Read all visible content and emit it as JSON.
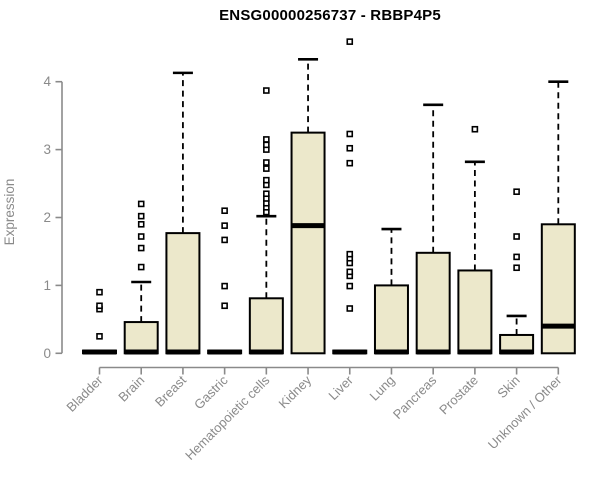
{
  "title": "ENSG00000256737 - RBBP4P5",
  "chart_data": {
    "type": "boxplot",
    "title": "ENSG00000256737 - RBBP4P5",
    "xlabel": "",
    "ylabel": "Expression",
    "ylim": [
      0,
      4.6
    ],
    "yticks": [
      0,
      1,
      2,
      3,
      4
    ],
    "grid": false,
    "legend": "none",
    "categories": [
      "Bladder",
      "Brain",
      "Breast",
      "Gastric",
      "Hematopoietic cells",
      "Kidney",
      "Liver",
      "Lung",
      "Pancreas",
      "Prostate",
      "Skin",
      "Unknown / Other"
    ],
    "series": [
      {
        "category": "Bladder",
        "q1": 0,
        "median": 0.02,
        "q3": 0.04,
        "whisker_low": 0,
        "whisker_high": 0.04,
        "outliers": [
          0.25,
          0.65,
          0.7,
          0.9
        ]
      },
      {
        "category": "Brain",
        "q1": 0,
        "median": 0.02,
        "q3": 0.46,
        "whisker_low": 0,
        "whisker_high": 1.05,
        "outliers": [
          1.27,
          1.55,
          1.72,
          1.9,
          2.02,
          2.2
        ]
      },
      {
        "category": "Breast",
        "q1": 0,
        "median": 0.02,
        "q3": 1.77,
        "whisker_low": 0,
        "whisker_high": 4.13,
        "outliers": []
      },
      {
        "category": "Gastric",
        "q1": 0,
        "median": 0.02,
        "q3": 0.04,
        "whisker_low": 0,
        "whisker_high": 0.04,
        "outliers": [
          0.7,
          0.99,
          1.67,
          1.88,
          2.1
        ]
      },
      {
        "category": "Hematopoietic cells",
        "q1": 0,
        "median": 0.02,
        "q3": 0.81,
        "whisker_low": 0,
        "whisker_high": 2.02,
        "outliers": [
          2.08,
          2.15,
          2.21,
          2.28,
          2.35,
          2.48,
          2.55,
          2.72,
          2.81,
          3.0,
          3.07,
          3.15,
          3.87
        ]
      },
      {
        "category": "Kidney",
        "q1": 0,
        "median": 1.88,
        "q3": 3.25,
        "whisker_low": 0,
        "whisker_high": 4.33,
        "outliers": []
      },
      {
        "category": "Liver",
        "q1": 0,
        "median": 0.02,
        "q3": 0.04,
        "whisker_low": 0,
        "whisker_high": 0.04,
        "outliers": [
          0.66,
          0.99,
          1.14,
          1.2,
          1.33,
          1.4,
          1.46,
          2.8,
          3.02,
          3.23,
          4.59
        ]
      },
      {
        "category": "Lung",
        "q1": 0,
        "median": 0.02,
        "q3": 1.0,
        "whisker_low": 0,
        "whisker_high": 1.83,
        "outliers": []
      },
      {
        "category": "Pancreas",
        "q1": 0,
        "median": 0.02,
        "q3": 1.48,
        "whisker_low": 0,
        "whisker_high": 3.66,
        "outliers": []
      },
      {
        "category": "Prostate",
        "q1": 0,
        "median": 0.02,
        "q3": 1.22,
        "whisker_low": 0,
        "whisker_high": 2.82,
        "outliers": [
          3.3
        ]
      },
      {
        "category": "Skin",
        "q1": 0,
        "median": 0.02,
        "q3": 0.27,
        "whisker_low": 0,
        "whisker_high": 0.55,
        "outliers": [
          1.26,
          1.42,
          1.72,
          2.38
        ]
      },
      {
        "category": "Unknown / Other",
        "q1": 0,
        "median": 0.4,
        "q3": 1.9,
        "whisker_low": 0,
        "whisker_high": 4.0,
        "outliers": []
      }
    ],
    "colors": {
      "box_fill": "#ECE8CB",
      "box_border": "#000000",
      "median": "#000000",
      "whisker": "#000000",
      "outlier_fill": "#ffffff",
      "axis": "#8a8a8a",
      "tick_label": "#8a8a8a",
      "title": "#000000",
      "background": "#ffffff"
    }
  }
}
